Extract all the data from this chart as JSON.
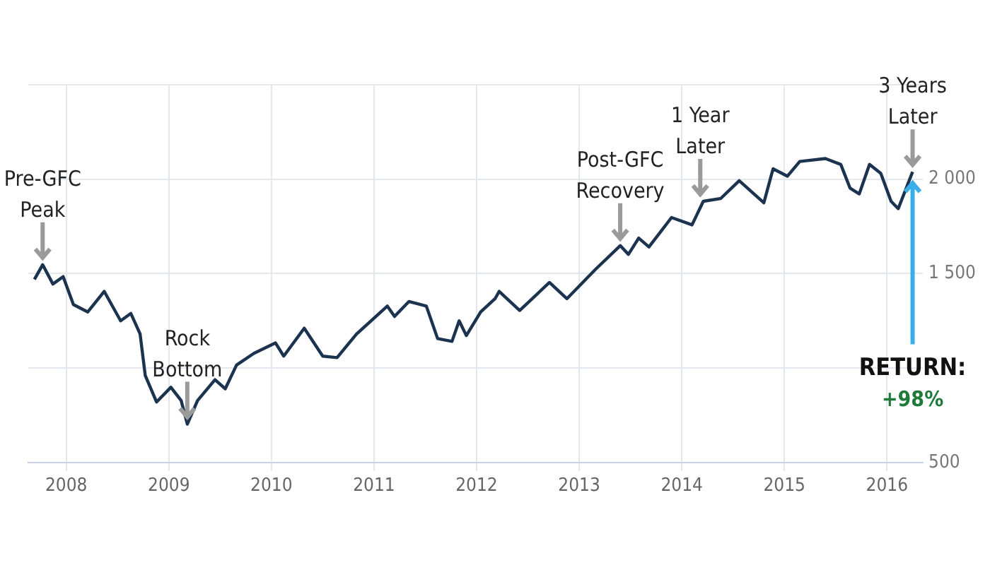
{
  "chart_data": {
    "type": "line",
    "x": [
      2007.69,
      2007.77,
      2007.87,
      2007.97,
      2008.07,
      2008.21,
      2008.37,
      2008.53,
      2008.63,
      2008.72,
      2008.77,
      2008.88,
      2009.02,
      2009.12,
      2009.18,
      2009.28,
      2009.45,
      2009.55,
      2009.66,
      2009.83,
      2010.04,
      2010.12,
      2010.32,
      2010.5,
      2010.64,
      2010.83,
      2011.13,
      2011.2,
      2011.34,
      2011.51,
      2011.62,
      2011.76,
      2011.83,
      2011.9,
      2012.04,
      2012.18,
      2012.22,
      2012.42,
      2012.71,
      2012.88,
      2013.16,
      2013.4,
      2013.48,
      2013.58,
      2013.68,
      2013.79,
      2013.9,
      2014.1,
      2014.21,
      2014.38,
      2014.56,
      2014.8,
      2014.89,
      2015.03,
      2015.15,
      2015.4,
      2015.55,
      2015.64,
      2015.73,
      2015.83,
      2015.94,
      2016.04,
      2016.11,
      2016.25
    ],
    "series": [
      {
        "color": "#1c3350",
        "values": [
          1469,
          1547,
          1445,
          1484,
          1336,
          1297,
          1406,
          1250,
          1289,
          1180,
          961,
          820,
          898,
          828,
          703,
          828,
          938,
          890,
          1016,
          1078,
          1133,
          1063,
          1211,
          1063,
          1055,
          1180,
          1328,
          1273,
          1352,
          1328,
          1156,
          1141,
          1250,
          1172,
          1297,
          1367,
          1406,
          1305,
          1453,
          1367,
          1523,
          1648,
          1602,
          1688,
          1641,
          1719,
          1797,
          1758,
          1883,
          1898,
          1992,
          1875,
          2055,
          2016,
          2094,
          2109,
          2078,
          1953,
          1922,
          2078,
          2031,
          1883,
          1844,
          2039
        ]
      }
    ],
    "xlim": [
      2007.63,
      2016.35
    ],
    "xticks": [
      2008,
      2009,
      2010,
      2011,
      2012,
      2013,
      2014,
      2015,
      2016
    ],
    "ylim": [
      500,
      2500
    ],
    "yticks": [
      {
        "value": 500,
        "label": "500"
      },
      {
        "value": 1000,
        "label": null
      },
      {
        "value": 1500,
        "label": "1 500"
      },
      {
        "value": 2000,
        "label": "2 000"
      },
      {
        "value": 2500,
        "label": null
      }
    ],
    "grid": true,
    "legend": false,
    "marker": "none",
    "line_style": "solid",
    "annotations": [
      {
        "text": "Pre-GFC Peak",
        "x": 2007.77,
        "y": 1547
      },
      {
        "text": "Rock Bottom",
        "x": 2009.18,
        "y": 703
      },
      {
        "text": "Post-GFC Recovery",
        "x": 2013.4,
        "y": 1648
      },
      {
        "text": "1 Year Later",
        "x": 2014.18,
        "y": 1883
      },
      {
        "text": "3 Years Later",
        "x": 2016.25,
        "y": 2039
      },
      {
        "text": "RETURN:",
        "x": 2016.25,
        "y": 2039
      },
      "+98%"
    ]
  }
}
